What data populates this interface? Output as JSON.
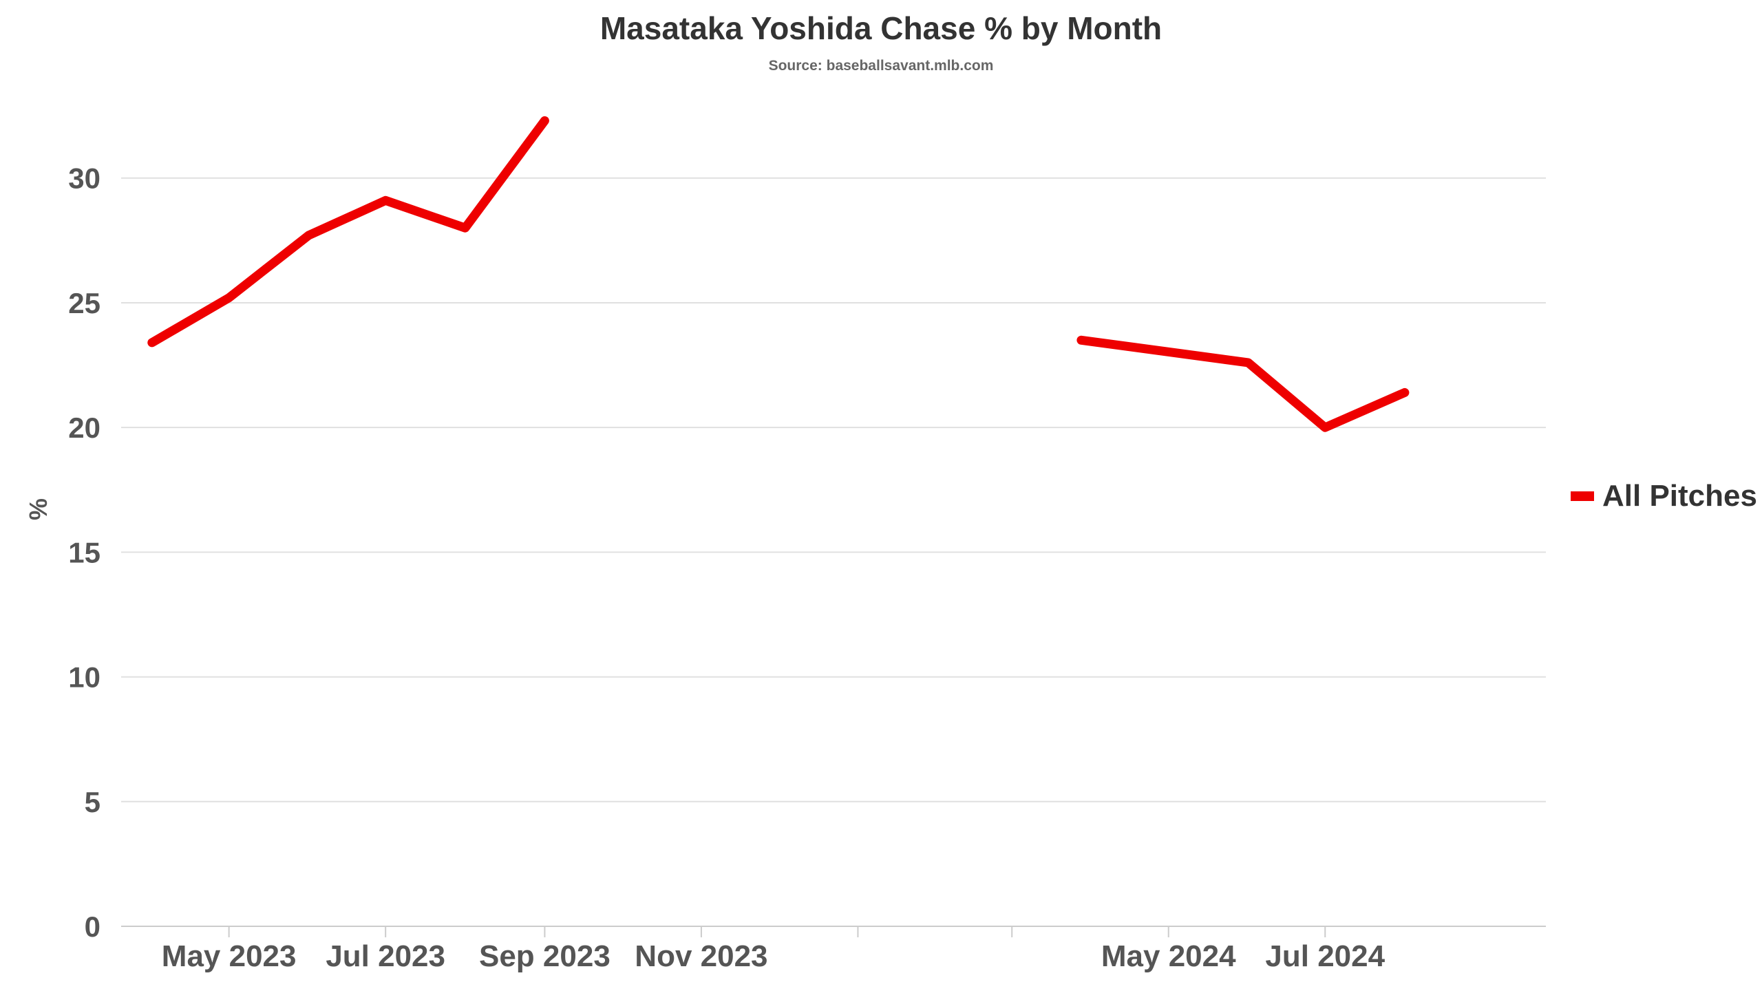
{
  "chart_data": {
    "type": "line",
    "title": "Masataka Yoshida Chase % by Month",
    "subtitle": "Source: baseballsavant.mlb.com",
    "xlabel": "",
    "ylabel": "%",
    "ylim": [
      0,
      33
    ],
    "yticks": [
      0,
      5,
      10,
      15,
      20,
      25,
      30
    ],
    "xlim": [
      "2023-03-20",
      "2024-09-25"
    ],
    "xticks": [
      {
        "date": "2023-05-01",
        "label": "May 2023"
      },
      {
        "date": "2023-07-01",
        "label": "Jul 2023"
      },
      {
        "date": "2023-09-01",
        "label": "Sep 2023"
      },
      {
        "date": "2023-11-01",
        "label": "Nov 2023"
      },
      {
        "date": "2024-01-01",
        "label": ""
      },
      {
        "date": "2024-03-01",
        "label": ""
      },
      {
        "date": "2024-05-01",
        "label": "May 2024"
      },
      {
        "date": "2024-07-01",
        "label": "Jul 2024"
      }
    ],
    "grid": true,
    "legend_position": "right",
    "series": [
      {
        "name": "All Pitches",
        "color": "#ee0000",
        "segments": [
          [
            {
              "x": "2023-04-01",
              "y": 23.4
            },
            {
              "x": "2023-05-01",
              "y": 25.2
            },
            {
              "x": "2023-06-01",
              "y": 27.7
            },
            {
              "x": "2023-07-01",
              "y": 29.1
            },
            {
              "x": "2023-08-01",
              "y": 28.0
            },
            {
              "x": "2023-09-01",
              "y": 32.3
            }
          ],
          [
            {
              "x": "2024-03-28",
              "y": 23.5
            },
            {
              "x": "2024-06-01",
              "y": 22.6
            },
            {
              "x": "2024-07-01",
              "y": 20.0
            },
            {
              "x": "2024-08-01",
              "y": 21.4
            }
          ]
        ]
      }
    ]
  }
}
